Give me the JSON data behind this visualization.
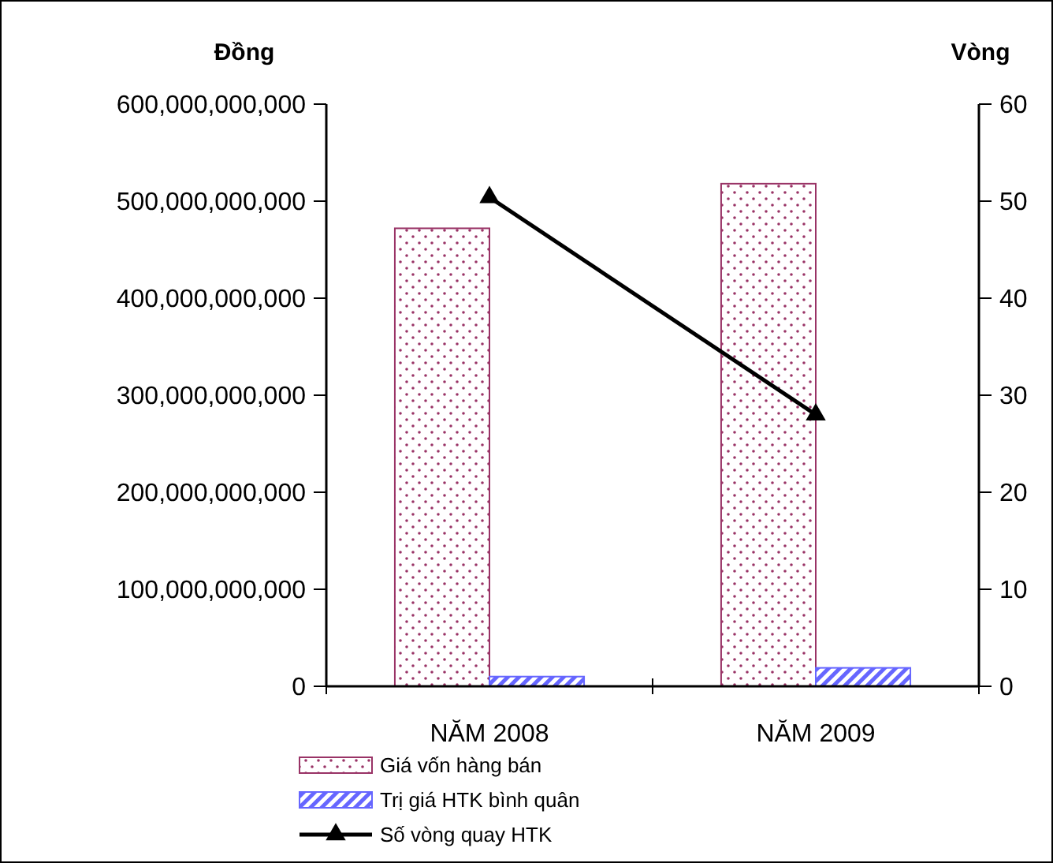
{
  "chart_data": {
    "type": "bar",
    "ylabel": "Đồng",
    "y2label": "Vòng",
    "categories": [
      "NĂM 2008",
      "NĂM 2009"
    ],
    "series": [
      {
        "name": "Giá vốn hàng bán",
        "color": "#993366",
        "values": [
          472000000000,
          518000000000
        ]
      },
      {
        "name": "Trị giá HTK bình quân",
        "color": "#6666ff",
        "values": [
          10000000000,
          19000000000
        ]
      },
      {
        "name": "Số vòng quay HTK",
        "type": "line",
        "axis": "y2",
        "color": "#000000",
        "marker": "triangle",
        "values": [
          50.4,
          28
        ]
      }
    ],
    "ylim": [
      0,
      600000000000
    ],
    "yticks": [
      {
        "value": 0,
        "label": "0"
      },
      {
        "value": 100000000000,
        "label": "100,000,000,000"
      },
      {
        "value": 200000000000,
        "label": "200,000,000,000"
      },
      {
        "value": 300000000000,
        "label": "300,000,000,000"
      },
      {
        "value": 400000000000,
        "label": "400,000,000,000"
      },
      {
        "value": 500000000000,
        "label": "500,000,000,000"
      },
      {
        "value": 600000000000,
        "label": "600,000,000,000"
      }
    ],
    "y2lim": [
      0,
      60
    ],
    "y2ticks": [
      0,
      10,
      20,
      30,
      40,
      50,
      60
    ],
    "grid": false,
    "legend": "bottom left"
  }
}
